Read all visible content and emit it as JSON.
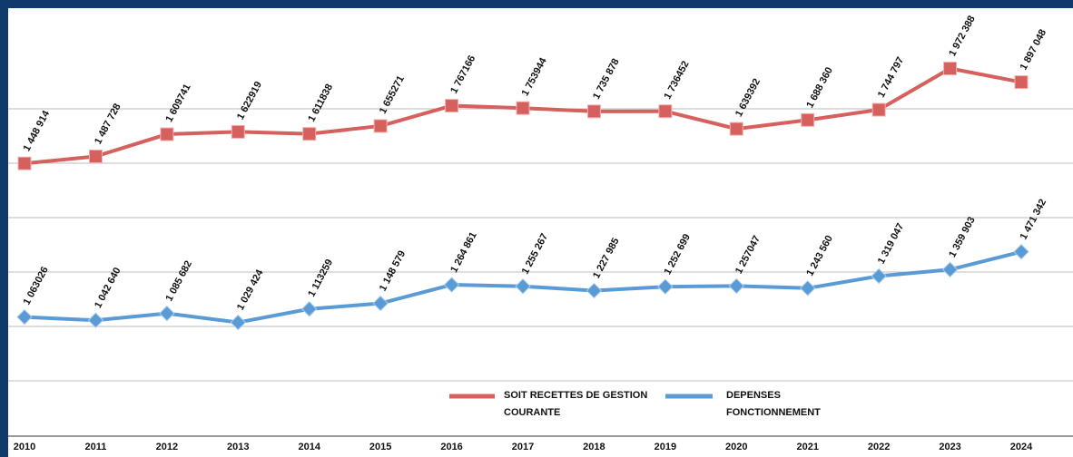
{
  "chart_data": {
    "type": "line",
    "categories": [
      "2010",
      "2011",
      "2012",
      "2013",
      "2014",
      "2015",
      "2016",
      "2017",
      "2018",
      "2019",
      "2020",
      "2021",
      "2022",
      "2023",
      "2024"
    ],
    "series": [
      {
        "name": "SOIT RECETTES DE GESTION COURANTE",
        "color": "#d6605d",
        "values": [
          1448914,
          1487728,
          1609741,
          1622919,
          1611838,
          1655271,
          1767166,
          1753944,
          1735878,
          1736452,
          1639392,
          1688360,
          1744797,
          1972388,
          1897048
        ],
        "value_labels": [
          "1 448 914",
          "1 487 728",
          "1 609741",
          "1 622919",
          "1 611838",
          "1 655271",
          "1 767166",
          "1 753944",
          "1 735 878",
          "1 736452",
          "1 639392",
          "1 688 360",
          "1 744 797",
          "1 972 388",
          "1 897 048"
        ]
      },
      {
        "name": "DEPENSES FONCTIONNEMENT",
        "color": "#5b9bd5",
        "axis": "y2",
        "values": [
          1063026,
          1042640,
          1085682,
          1029424,
          1113259,
          1148579,
          1264861,
          1255267,
          1227985,
          1252699,
          1257047,
          1243560,
          1319047,
          1359903,
          1471342
        ],
        "value_labels": [
          "1 063026",
          "1 042 640",
          "1 085 682",
          "1 029 424",
          "1 113259",
          "1 148 579",
          "1 264 861",
          "1 255 267",
          "1 227 985",
          "1 252 699",
          "1 257047",
          "1 243 560",
          "1 319 047",
          "1 359 903",
          "1 471 342"
        ]
      }
    ],
    "ylim": [
      0,
      2300000
    ],
    "yticks": [
      250000,
      550000,
      850000,
      1150000,
      1450000,
      1750000
    ],
    "y2lim": [
      380000,
      2990000
    ],
    "grid": true,
    "legend": "bottom"
  }
}
